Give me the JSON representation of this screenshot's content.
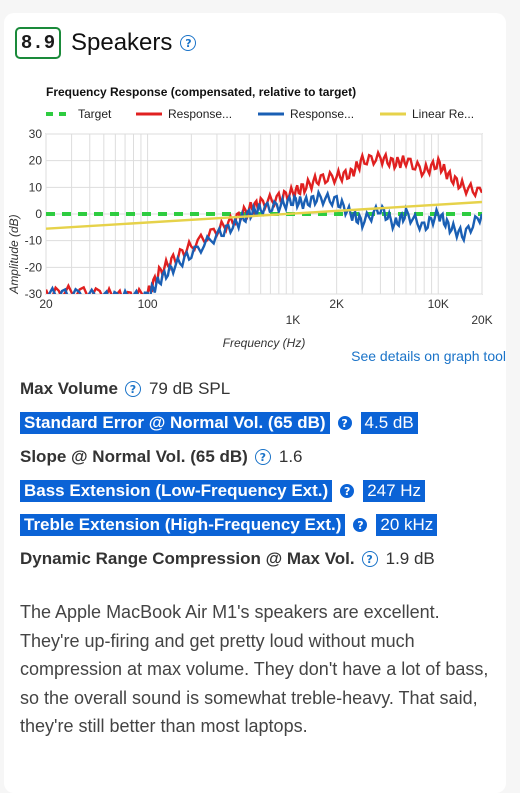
{
  "section": {
    "score": "8.9",
    "title": "Speakers",
    "help_icon": "question-circle-icon"
  },
  "chart_data": {
    "type": "line",
    "title": "Frequency Response (compensated, relative to target)",
    "xlabel": "Frequency (Hz)",
    "ylabel": "Amplitude (dB)",
    "xscale": "log",
    "xlim": [
      20,
      20000
    ],
    "ylim": [
      -30,
      30
    ],
    "grid": true,
    "legend_position": "top",
    "x_ticks": [
      "20",
      "100",
      "1K",
      "2K",
      "10K",
      "20K"
    ],
    "y_ticks": [
      "30",
      "20",
      "10",
      "0",
      "-10",
      "-20",
      "-30"
    ],
    "legend": [
      "Target",
      "Response...",
      "Response...",
      "Linear Re..."
    ],
    "series": [
      {
        "name": "Target",
        "color": "#2ecc40",
        "dashed": true,
        "x": [
          20,
          20000
        ],
        "y": [
          0,
          0
        ]
      },
      {
        "name": "Response...",
        "color": "#e02020",
        "x": [
          20,
          30,
          50,
          70,
          100,
          120,
          150,
          200,
          300,
          400,
          500,
          600,
          800,
          1000,
          1200,
          1500,
          2000,
          2500,
          3000,
          4000,
          5000,
          6000,
          8000,
          10000,
          12000,
          15000,
          20000
        ],
        "y": [
          -30,
          -29,
          -30,
          -31,
          -30,
          -22,
          -17,
          -12,
          -6,
          -2,
          2,
          4,
          6,
          8,
          10,
          13,
          14,
          15,
          20,
          21,
          19,
          20,
          16,
          19,
          14,
          10,
          8
        ]
      },
      {
        "name": "Response...",
        "color": "#1a5fb4",
        "x": [
          20,
          30,
          50,
          70,
          100,
          120,
          150,
          200,
          300,
          400,
          500,
          600,
          800,
          1000,
          1200,
          1500,
          2000,
          2500,
          3000,
          4000,
          5000,
          6000,
          8000,
          10000,
          12000,
          15000,
          20000
        ],
        "y": [
          -30,
          -30,
          -31,
          -31,
          -31,
          -25,
          -20,
          -15,
          -8,
          -4,
          0,
          2,
          3,
          5,
          4,
          6,
          5,
          0,
          -3,
          2,
          -4,
          0,
          -5,
          0,
          -5,
          -8,
          0
        ]
      },
      {
        "name": "Linear Re...",
        "color": "#e6d24a",
        "x": [
          20,
          20000
        ],
        "y": [
          -5.5,
          4.5
        ]
      }
    ]
  },
  "graph_link": "See details on graph tool",
  "specs": [
    {
      "label": "Max Volume",
      "value": "79 dB SPL",
      "highlight": false
    },
    {
      "label": "Standard Error @ Normal Vol. (65 dB)",
      "value": "4.5 dB",
      "highlight": true
    },
    {
      "label": "Slope @ Normal Vol. (65 dB)",
      "value": "1.6",
      "highlight": false
    },
    {
      "label": "Bass Extension (Low-Frequency Ext.)",
      "value": "247 Hz",
      "highlight": true
    },
    {
      "label": "Treble Extension (High-Frequency Ext.)",
      "value": "20 kHz",
      "highlight": true
    },
    {
      "label": "Dynamic Range Compression @ Max Vol.",
      "value": "1.9 dB",
      "highlight": false
    }
  ],
  "description": "The Apple MacBook Air M1's speakers are excellent. They're up-firing and get pretty loud without much compression at max volume. They don't have a lot of bass, so the overall sound is somewhat treble-heavy. That said, they're still better than most laptops."
}
